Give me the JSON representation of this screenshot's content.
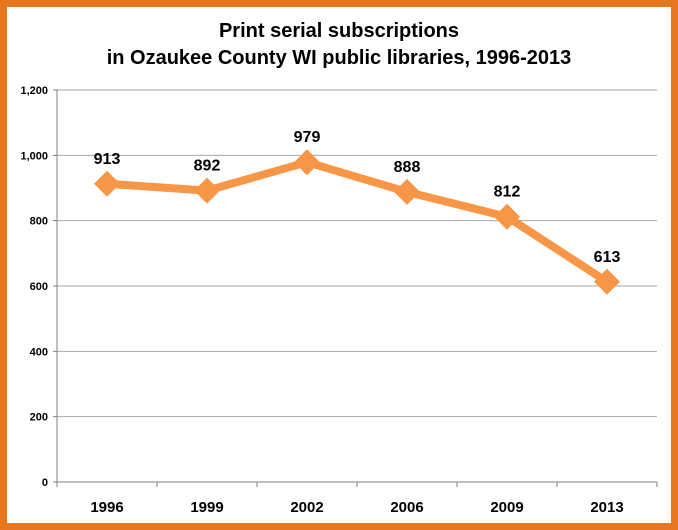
{
  "chart_data": {
    "type": "line",
    "title_lines": [
      "Print serial subscriptions",
      "in Ozaukee County WI public libraries, 1996-2013"
    ],
    "categories": [
      "1996",
      "1999",
      "2002",
      "2006",
      "2009",
      "2013"
    ],
    "series": [
      {
        "values": [
          913,
          892,
          979,
          888,
          812,
          613
        ]
      }
    ],
    "data_labels": [
      "913",
      "892",
      "979",
      "888",
      "812",
      "613"
    ],
    "y_ticks": [
      0,
      200,
      400,
      600,
      800,
      1000,
      1200
    ],
    "y_tick_labels": [
      "0",
      "200",
      "400",
      "600",
      "800",
      "1,000",
      "1,200"
    ],
    "ylim": [
      0,
      1200
    ],
    "grid": true,
    "legend": "none",
    "colors": {
      "line": "#f79646",
      "frame": "#e8761e",
      "grid": "#a6a6a6"
    }
  }
}
